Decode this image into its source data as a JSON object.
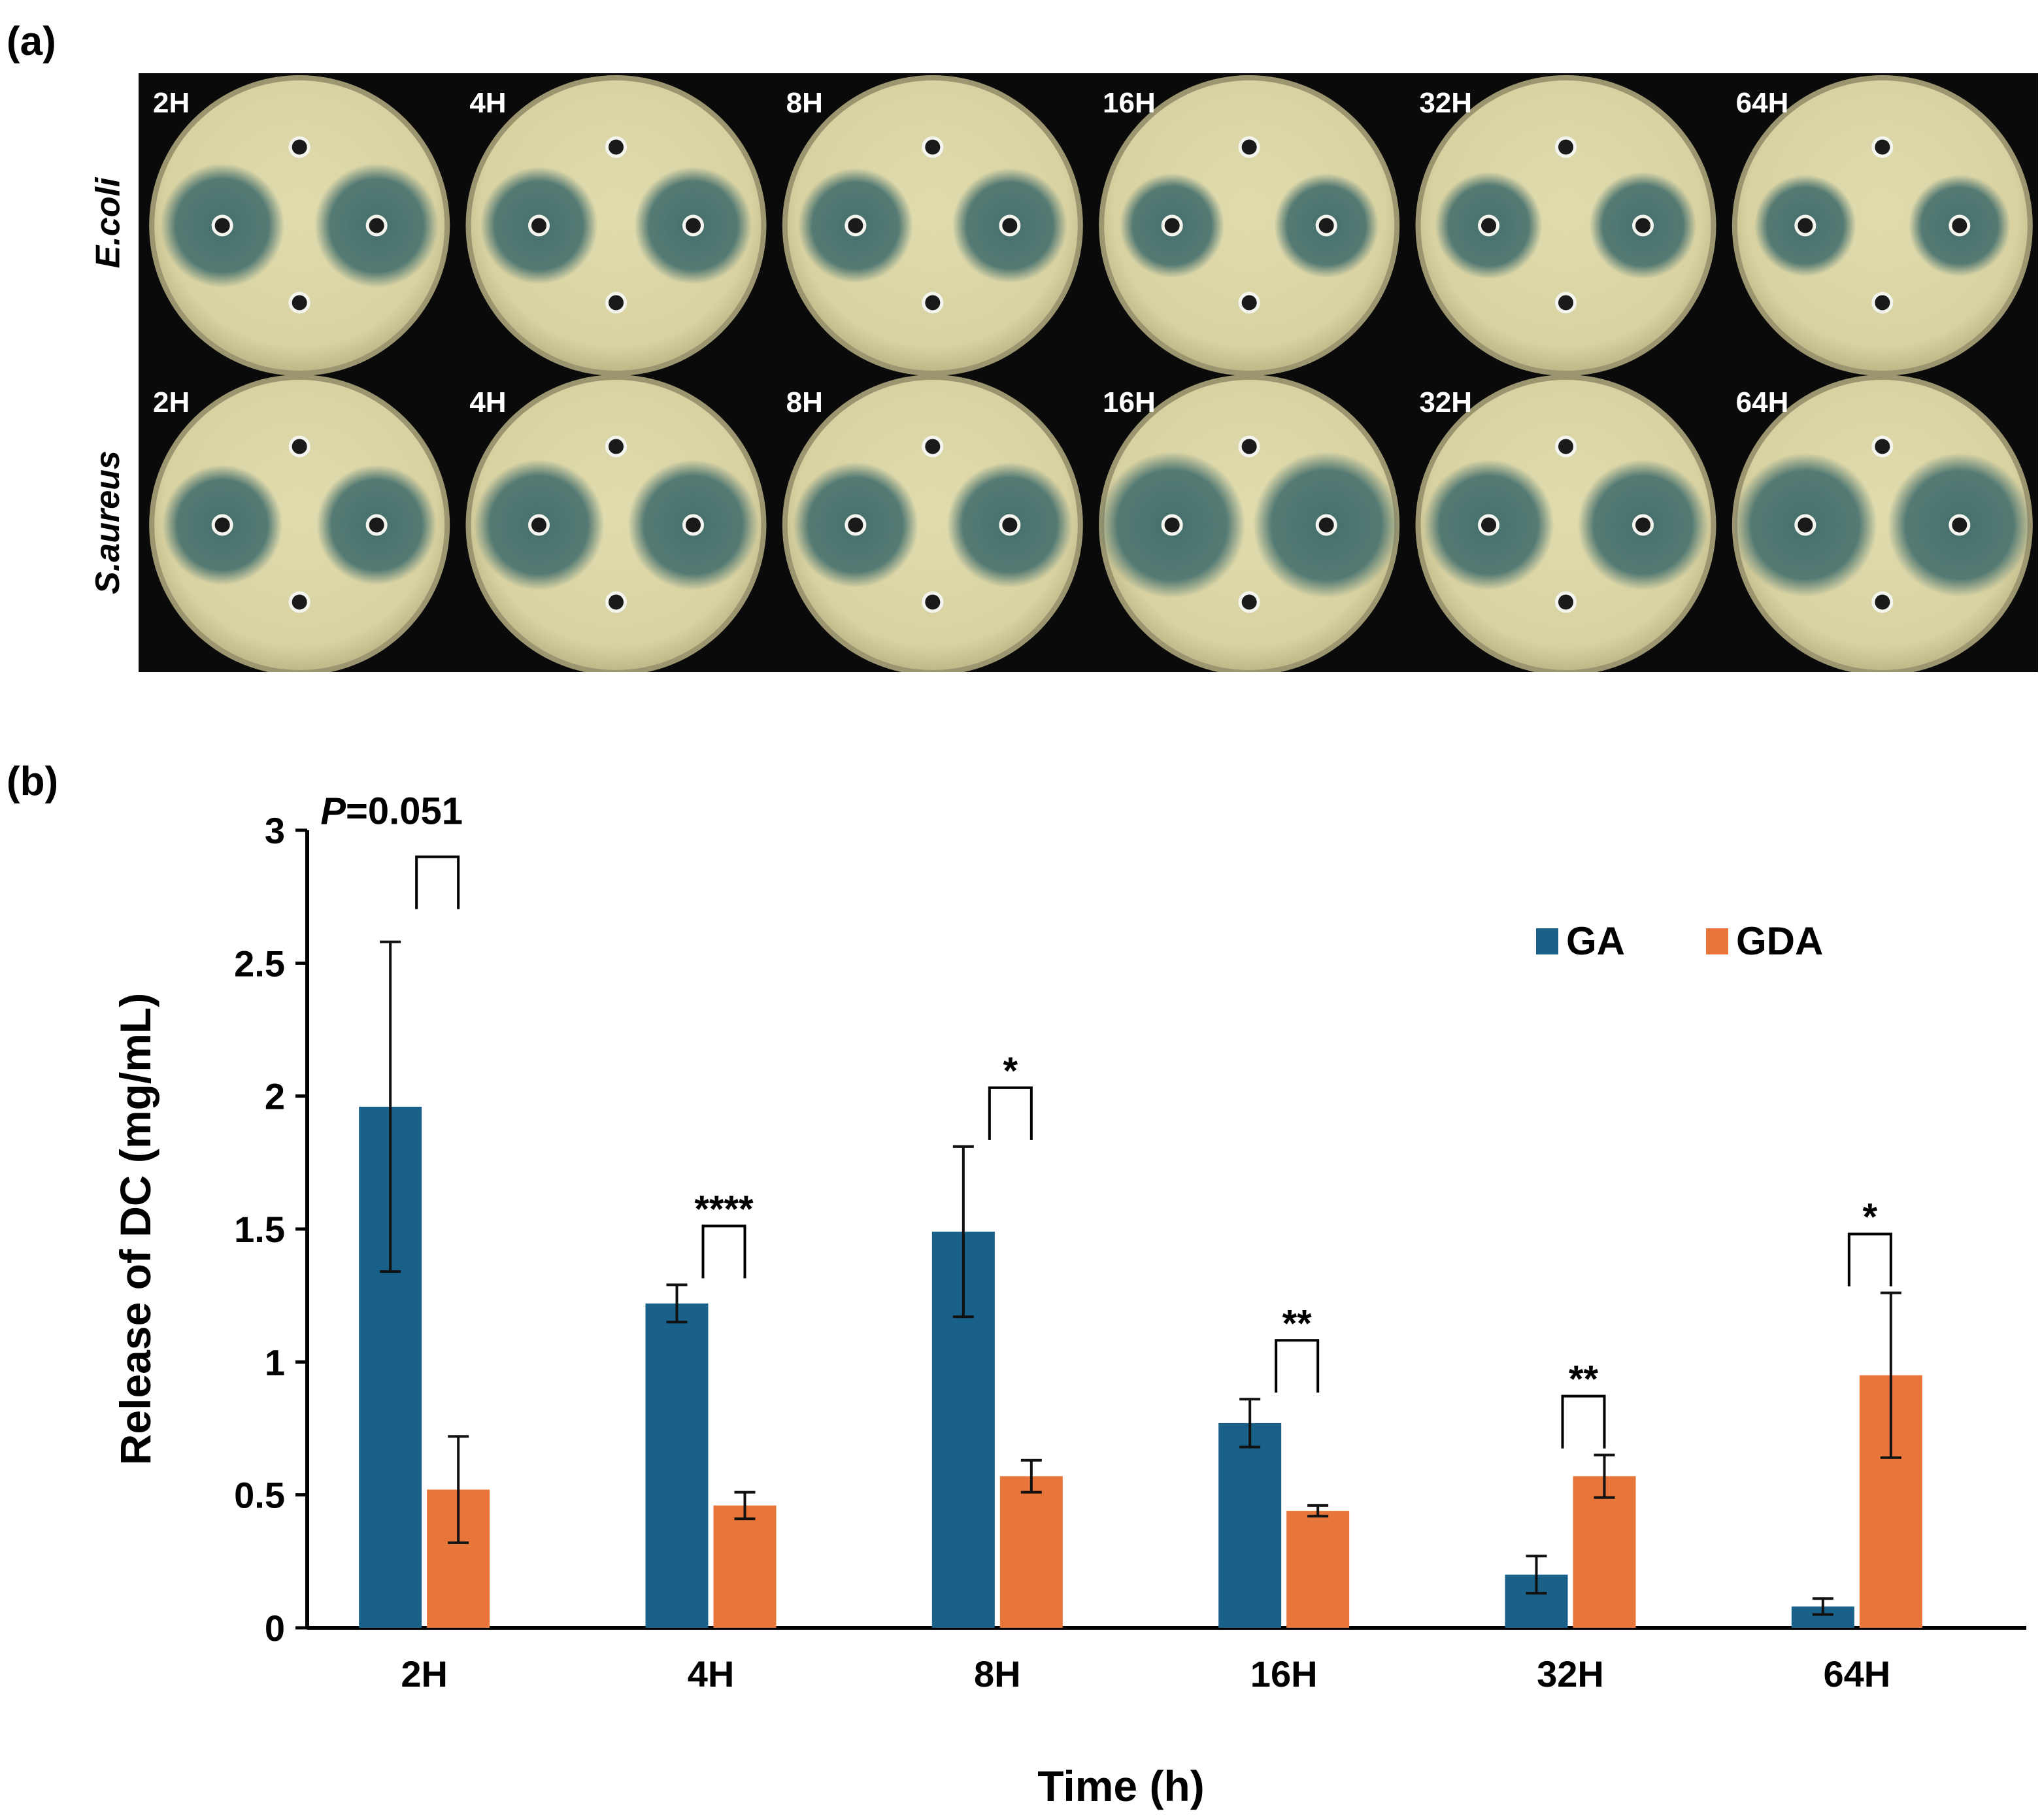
{
  "panel_a": {
    "label": "(a)",
    "row_labels": [
      "E.coli",
      "S.aureus"
    ],
    "time_labels": [
      "2H",
      "4H",
      "8H",
      "16H",
      "32H",
      "64H"
    ]
  },
  "panel_b": {
    "label": "(b)"
  },
  "colors": {
    "GA": "#1a6189",
    "GDA": "#e8763a",
    "plate": "#d8d2a2",
    "zone": "#3d6a6a",
    "background": "#0a0a0a"
  },
  "chart_data": {
    "type": "bar",
    "categories": [
      "2H",
      "4H",
      "8H",
      "16H",
      "32H",
      "64H"
    ],
    "series": [
      {
        "name": "GA",
        "values": [
          1.96,
          1.22,
          1.49,
          0.77,
          0.2,
          0.08
        ],
        "errors": [
          0.62,
          0.07,
          0.32,
          0.09,
          0.07,
          0.03
        ]
      },
      {
        "name": "GDA",
        "values": [
          0.52,
          0.46,
          0.57,
          0.44,
          0.57,
          0.95
        ],
        "errors": [
          0.2,
          0.05,
          0.06,
          0.02,
          0.08,
          0.31
        ]
      }
    ],
    "xlabel": "Time (h)",
    "ylabel": "Release of DC (mg/mL)",
    "ylim": [
      0,
      3
    ],
    "yticks": [
      "0",
      "0.5",
      "1",
      "1.5",
      "2",
      "2.5",
      "3"
    ],
    "legend": "top-right",
    "significance": [
      {
        "category": "2H",
        "label": "=0.051",
        "prefix": "P"
      },
      {
        "category": "4H",
        "label": "****"
      },
      {
        "category": "8H",
        "label": "*"
      },
      {
        "category": "16H",
        "label": "**"
      },
      {
        "category": "32H",
        "label": "**"
      },
      {
        "category": "64H",
        "label": "*"
      }
    ]
  }
}
